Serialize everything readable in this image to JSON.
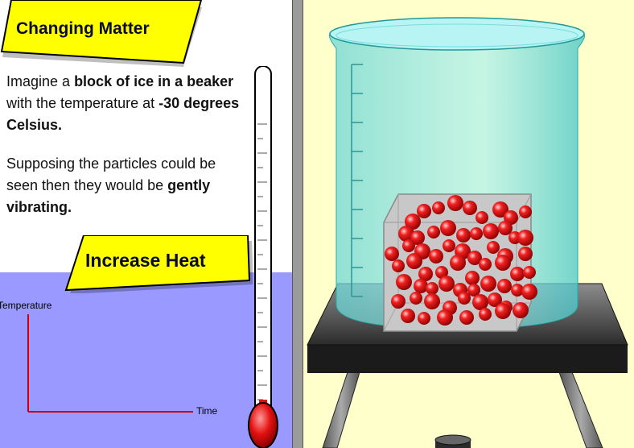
{
  "title": "Changing Matter",
  "intro": {
    "p1_a": "Imagine a ",
    "p1_b": "block of ice in a beaker",
    "p1_c": " with the temperature at ",
    "p1_d": "-30 degrees Celsius.",
    "p2_a": "Supposing the particles could be seen then they would be ",
    "p2_b": "gently vibrating."
  },
  "increase_heat_label": "Increase Heat",
  "graph": {
    "y_label": "Temperature",
    "x_label": "Time"
  },
  "colors": {
    "banner_fill": "#ffff00",
    "graph_bg": "#9999ff",
    "stage_bg": "#ffffcc",
    "particle": "#e31010",
    "water": "#7fe3e3"
  }
}
